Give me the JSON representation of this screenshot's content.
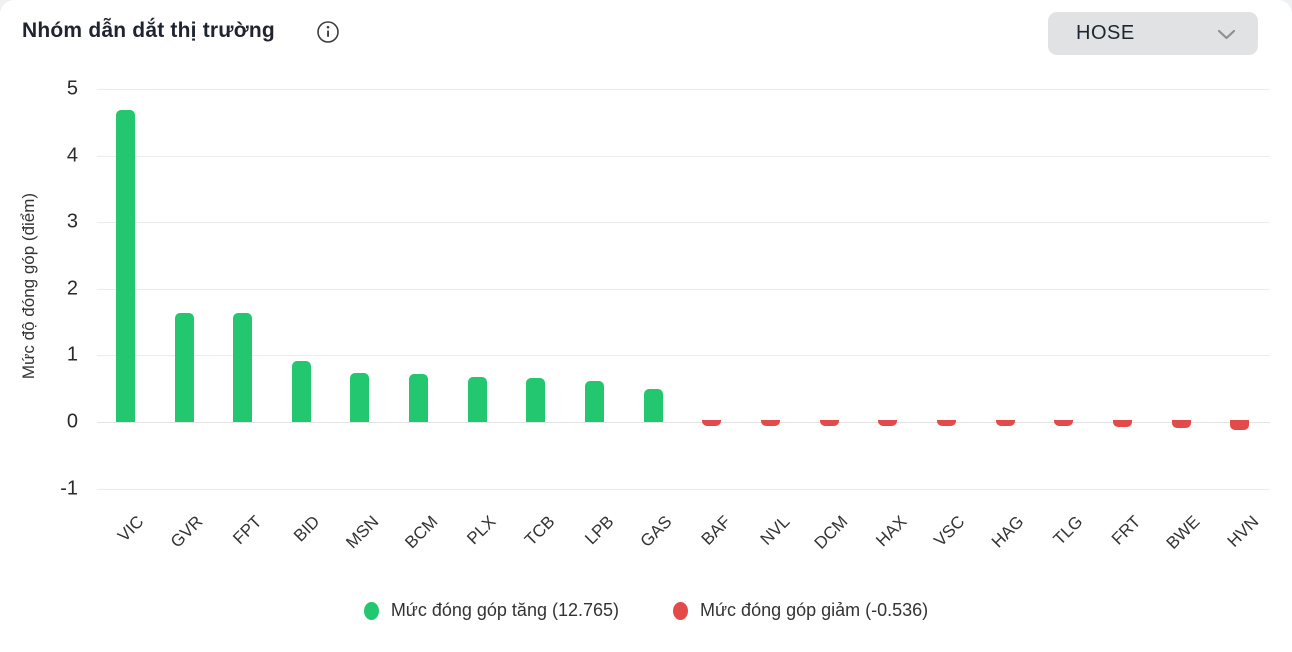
{
  "header": {
    "title": "Nhóm dẫn dắt thị trường",
    "exchange_selector": {
      "value": "HOSE"
    }
  },
  "chart_data": {
    "type": "bar",
    "title": "Nhóm dẫn dắt thị trường",
    "xlabel": "",
    "ylabel": "Mức độ đóng góp (điểm)",
    "ylim": [
      -1,
      5
    ],
    "yticks": [
      5,
      4,
      3,
      2,
      1,
      0,
      -1
    ],
    "grid": true,
    "legend_position": "bottom",
    "categories": [
      "VIC",
      "GVR",
      "FPT",
      "BID",
      "MSN",
      "BCM",
      "PLX",
      "TCB",
      "LPB",
      "GAS",
      "BAF",
      "NVL",
      "DCM",
      "HAX",
      "VSC",
      "HAG",
      "TLG",
      "FRT",
      "BWE",
      "HVN"
    ],
    "values": [
      4.68,
      1.63,
      1.63,
      0.92,
      0.73,
      0.72,
      0.67,
      0.665,
      0.62,
      0.5,
      -0.03,
      -0.03,
      -0.03,
      -0.035,
      -0.035,
      -0.04,
      -0.055,
      -0.075,
      -0.085,
      -0.121
    ],
    "colors": {
      "positive": "#22c76f",
      "negative": "#e34a4a"
    },
    "legend": [
      {
        "label": "Mức đóng góp tăng (12.765)",
        "color": "#22c76f"
      },
      {
        "label": "Mức đóng góp giảm (-0.536)",
        "color": "#e34a4a"
      }
    ]
  }
}
